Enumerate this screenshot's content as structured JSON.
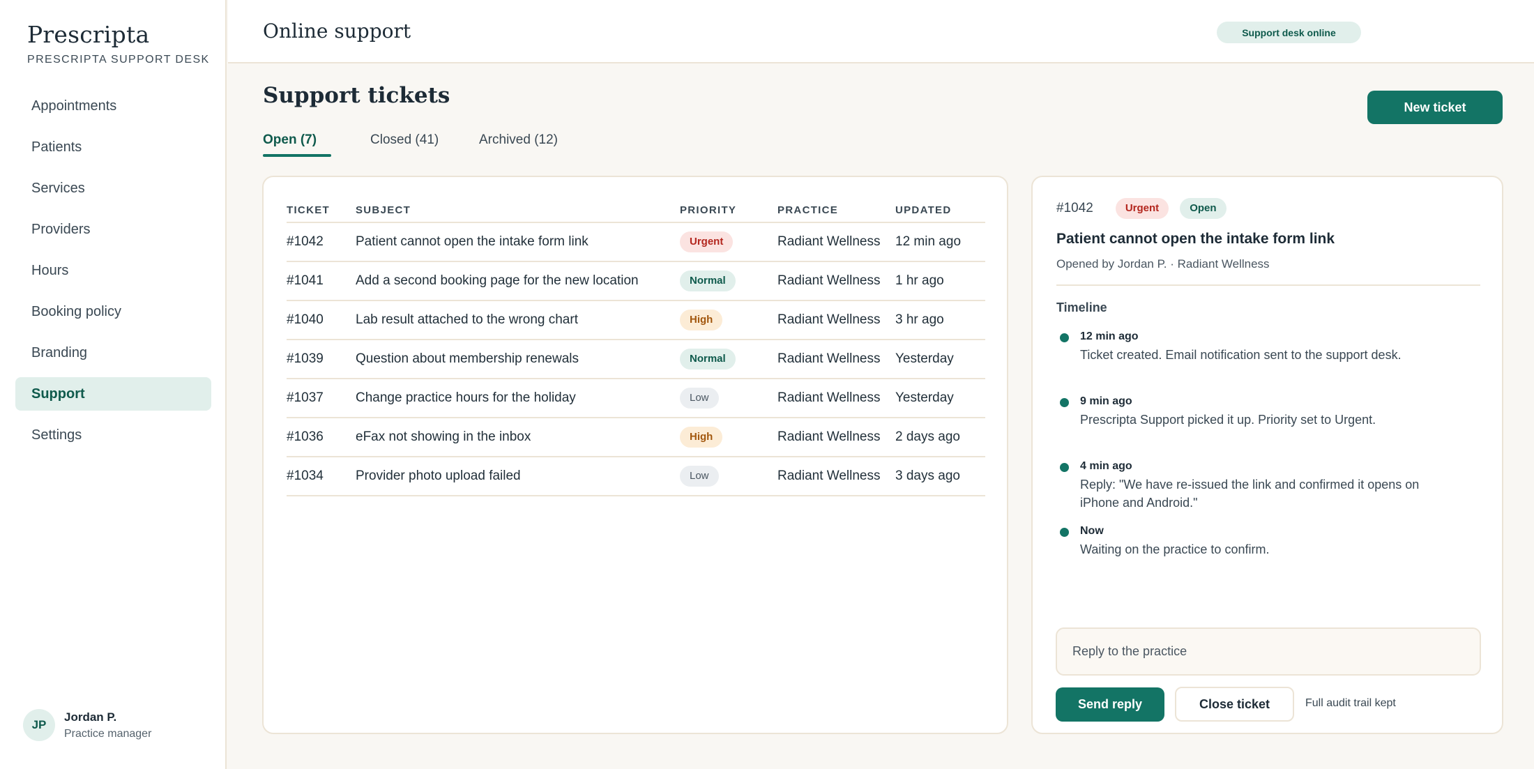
{
  "brand": {
    "name": "Prescripta",
    "subtitle": "PRESCRIPTA SUPPORT DESK"
  },
  "sidebar": {
    "items": [
      {
        "label": "Appointments",
        "active": false
      },
      {
        "label": "Patients",
        "active": false
      },
      {
        "label": "Services",
        "active": false
      },
      {
        "label": "Providers",
        "active": false
      },
      {
        "label": "Hours",
        "active": false
      },
      {
        "label": "Booking policy",
        "active": false
      },
      {
        "label": "Branding",
        "active": false
      },
      {
        "label": "Support",
        "active": true
      },
      {
        "label": "Settings",
        "active": false
      }
    ]
  },
  "user": {
    "initials": "JP",
    "name": "Jordan P.",
    "role": "Practice manager"
  },
  "header": {
    "title": "Online support",
    "status": "Support desk online"
  },
  "main": {
    "title": "Support tickets",
    "new_ticket_label": "New ticket",
    "tabs": [
      {
        "label": "Open (7)",
        "active": true
      },
      {
        "label": "Closed (41)",
        "active": false
      },
      {
        "label": "Archived (12)",
        "active": false
      }
    ]
  },
  "table": {
    "columns": [
      "TICKET",
      "SUBJECT",
      "PRIORITY",
      "PRACTICE",
      "UPDATED"
    ],
    "rows": [
      {
        "id": "#1042",
        "subject": "Patient cannot open the intake form link",
        "priority": "Urgent",
        "practice": "Radiant Wellness",
        "updated": "12 min ago"
      },
      {
        "id": "#1041",
        "subject": "Add a second booking page for the new location",
        "priority": "Normal",
        "practice": "Radiant Wellness",
        "updated": "1 hr ago"
      },
      {
        "id": "#1040",
        "subject": "Lab result attached to the wrong chart",
        "priority": "High",
        "practice": "Radiant Wellness",
        "updated": "3 hr ago"
      },
      {
        "id": "#1039",
        "subject": "Question about membership renewals",
        "priority": "Normal",
        "practice": "Radiant Wellness",
        "updated": "Yesterday"
      },
      {
        "id": "#1037",
        "subject": "Change practice hours for the holiday",
        "priority": "Low",
        "practice": "Radiant Wellness",
        "updated": "Yesterday"
      },
      {
        "id": "#1036",
        "subject": "eFax not showing in the inbox",
        "priority": "High",
        "practice": "Radiant Wellness",
        "updated": "2 days ago"
      },
      {
        "id": "#1034",
        "subject": "Provider photo upload failed",
        "priority": "Low",
        "practice": "Radiant Wellness",
        "updated": "3 days ago"
      }
    ]
  },
  "detail": {
    "id": "#1042",
    "priority": "Urgent",
    "status": "Open",
    "title": "Patient cannot open the intake form link",
    "meta": "Opened by Jordan P. · Radiant Wellness",
    "timeline_title": "Timeline",
    "timeline": [
      {
        "time": "12 min ago",
        "text": "Ticket created. Email notification sent to the support desk."
      },
      {
        "time": "9 min ago",
        "text": "Prescripta Support picked it up. Priority set to Urgent."
      },
      {
        "time": "4 min ago",
        "text": "Reply: \"We have re-issued the link and confirmed it opens on iPhone and Android.\""
      },
      {
        "time": "Now",
        "text": "Waiting on the practice to confirm."
      }
    ],
    "reply_placeholder": "Reply to the practice",
    "send_label": "Send reply",
    "close_label": "Close ticket",
    "audit_note": "Full audit trail kept"
  },
  "colors": {
    "accent": "#137465",
    "accent_soft": "#e1efeb",
    "border": "#ece4d6",
    "background": "#f9f7f3"
  }
}
